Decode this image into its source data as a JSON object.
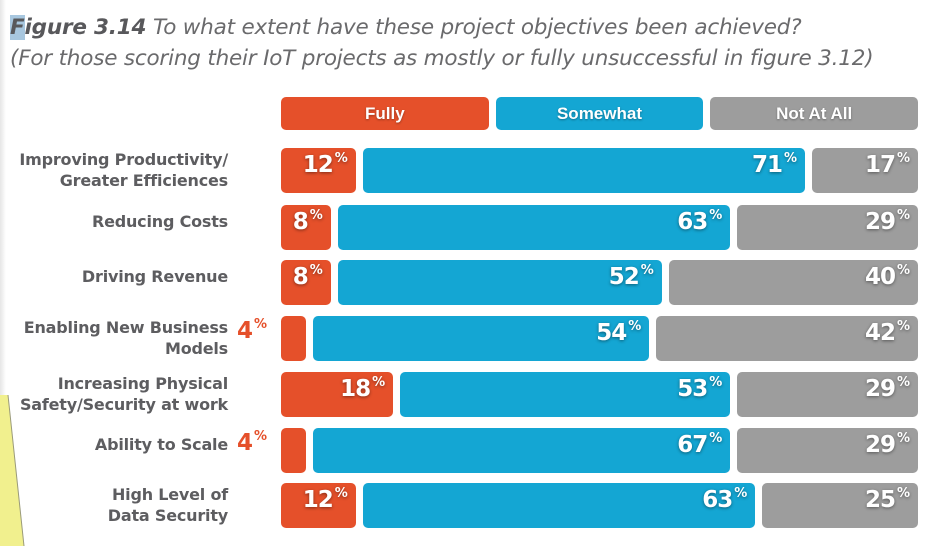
{
  "chart_data": {
    "type": "bar",
    "orientation": "horizontal-stacked-100",
    "title": "Figure 3.14 To what extent have these project objectives been achieved?",
    "title_prefix": "Figure 3.14",
    "title_question": "To what extent have these project objectives been achieved?",
    "subtitle": "(For those scoring their IoT projects as mostly or fully unsuccessful in figure 3.12)",
    "xlabel": "",
    "ylabel": "",
    "xlim": [
      0,
      100
    ],
    "unit": "%",
    "legend_position": "top",
    "categories": [
      [
        "Improving Productivity/",
        "Greater Efficiences"
      ],
      [
        "Reducing Costs"
      ],
      [
        "Driving Revenue"
      ],
      [
        "Enabling New Business",
        "Models"
      ],
      [
        "Increasing Physical",
        "Safety/Security at work"
      ],
      [
        "Ability to Scale"
      ],
      [
        "High Level of",
        "Data Security"
      ]
    ],
    "series": [
      {
        "name": "Fully",
        "color": "#e5502a",
        "values": [
          12,
          8,
          8,
          4,
          18,
          4,
          12
        ]
      },
      {
        "name": "Somewhat",
        "color": "#14a6d3",
        "values": [
          71,
          63,
          52,
          54,
          53,
          67,
          63
        ]
      },
      {
        "name": "Not At All",
        "color": "#9d9d9d",
        "values": [
          17,
          29,
          40,
          42,
          29,
          29,
          25
        ]
      }
    ]
  }
}
